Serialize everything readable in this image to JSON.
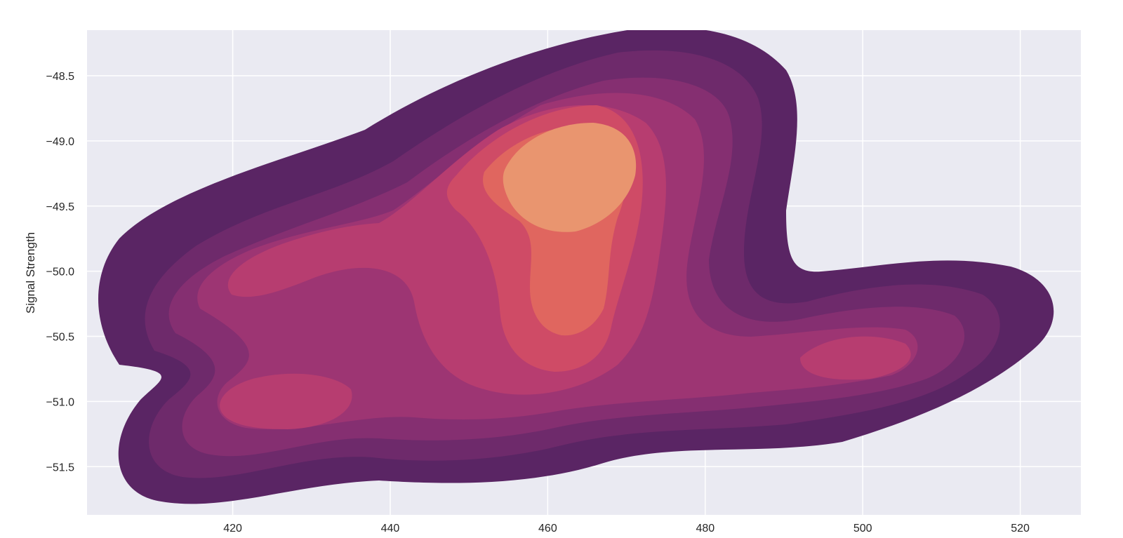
{
  "chart_data": {
    "type": "kde-contour",
    "xlabel": "",
    "ylabel": "Signal Strength",
    "xlim": [
      401.5,
      527.7
    ],
    "ylim": [
      -51.87,
      -48.15
    ],
    "x_ticks": [
      420,
      440,
      460,
      480,
      500,
      520
    ],
    "x_tick_labels": [
      "420",
      "440",
      "460",
      "480",
      "500",
      "520"
    ],
    "y_ticks": [
      -48.5,
      -49.0,
      -49.5,
      -50.0,
      -50.5,
      -51.0,
      -51.5
    ],
    "y_tick_labels": [
      "−48.5",
      "−49.0",
      "−49.5",
      "−50.0",
      "−50.5",
      "−51.0",
      "−51.5"
    ],
    "grid": true,
    "palette": [
      "#5a2564",
      "#6e2a6b",
      "#852f71",
      "#9d3573",
      "#b73d70",
      "#cf4b66",
      "#e0665f",
      "#e9956f"
    ],
    "background": "#eaeaf2",
    "density_peaks": [
      {
        "x": 464,
        "y": -49.35,
        "weight": 1.0
      },
      {
        "x": 464,
        "y": -50.25,
        "weight": 0.75
      },
      {
        "x": 425,
        "y": -49.9,
        "weight": 0.45
      },
      {
        "x": 428,
        "y": -51.15,
        "weight": 0.42
      },
      {
        "x": 500,
        "y": -50.65,
        "weight": 0.45
      }
    ]
  }
}
